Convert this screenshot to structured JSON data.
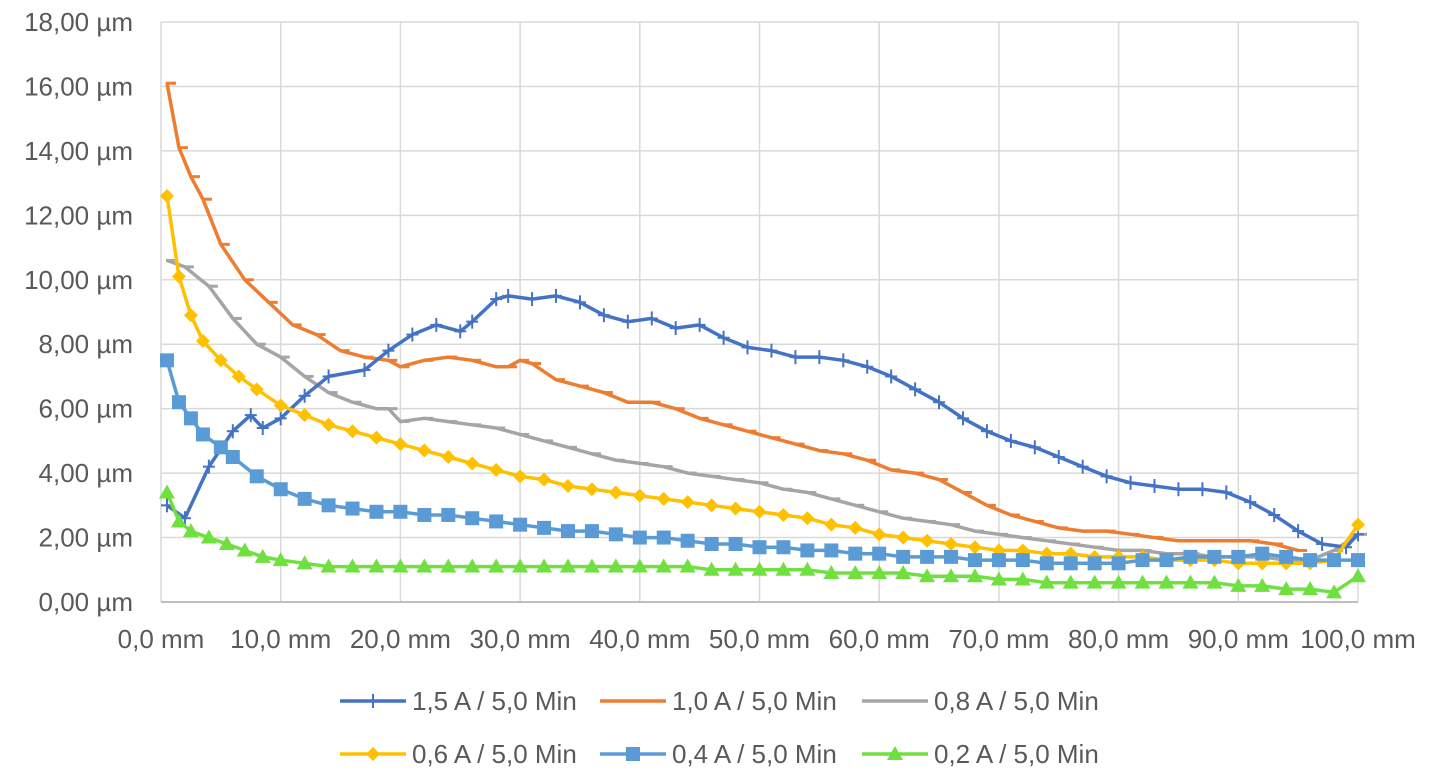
{
  "chart_data": {
    "type": "line",
    "title": "",
    "xlabel": "",
    "ylabel": "",
    "xlim": [
      0,
      100
    ],
    "ylim": [
      0,
      18
    ],
    "x_ticks": [
      0,
      10,
      20,
      30,
      40,
      50,
      60,
      70,
      80,
      90,
      100
    ],
    "x_tick_labels": [
      "0,0 mm",
      "10,0 mm",
      "20,0 mm",
      "30,0 mm",
      "40,0 mm",
      "50,0 mm",
      "60,0 mm",
      "70,0 mm",
      "80,0 mm",
      "90,0 mm",
      "100,0 mm"
    ],
    "y_ticks": [
      0,
      2,
      4,
      6,
      8,
      10,
      12,
      14,
      16,
      18
    ],
    "y_tick_labels": [
      "0,00 µm",
      "2,00 µm",
      "4,00 µm",
      "6,00 µm",
      "8,00 µm",
      "10,00 µm",
      "12,00 µm",
      "14,00 µm",
      "16,00 µm",
      "18,00 µm"
    ],
    "grid": true,
    "legend_position": "bottom",
    "series": [
      {
        "name": "1,5 A / 5,0 Min",
        "color": "#4472c4",
        "marker": "plus",
        "x": [
          0.5,
          2,
          4,
          6,
          7.5,
          8.5,
          10,
          12,
          14,
          17,
          19,
          21,
          23,
          25,
          26,
          28,
          29,
          31,
          33,
          35,
          37,
          39,
          41,
          43,
          45,
          47,
          49,
          51,
          53,
          55,
          57,
          59,
          61,
          63,
          65,
          67,
          69,
          71,
          73,
          75,
          77,
          79,
          81,
          83,
          85,
          87,
          89,
          91,
          93,
          95,
          97,
          99,
          100
        ],
        "y": [
          3.0,
          2.6,
          4.2,
          5.3,
          5.8,
          5.4,
          5.7,
          6.4,
          7.0,
          7.2,
          7.8,
          8.3,
          8.6,
          8.4,
          8.7,
          9.4,
          9.5,
          9.4,
          9.5,
          9.3,
          8.9,
          8.7,
          8.8,
          8.5,
          8.6,
          8.2,
          7.9,
          7.8,
          7.6,
          7.6,
          7.5,
          7.3,
          7.0,
          6.6,
          6.2,
          5.7,
          5.3,
          5.0,
          4.8,
          4.5,
          4.2,
          3.9,
          3.7,
          3.6,
          3.5,
          3.5,
          3.4,
          3.1,
          2.7,
          2.2,
          1.8,
          1.7,
          2.1
        ]
      },
      {
        "name": "1,0 A / 5,0 Min",
        "color": "#ed7d31",
        "marker": "dash",
        "x": [
          0.5,
          1.5,
          2.5,
          3.5,
          5,
          7,
          9,
          11,
          13,
          15,
          17,
          19,
          20,
          22,
          24,
          26,
          28,
          29,
          30,
          31,
          33,
          35,
          37,
          39,
          41,
          43,
          45,
          47,
          49,
          51,
          53,
          55,
          57,
          59,
          61,
          63,
          65,
          67,
          69,
          71,
          73,
          75,
          77,
          79,
          81,
          83,
          85,
          87,
          89,
          91,
          93,
          95
        ],
        "y": [
          16.1,
          14.1,
          13.2,
          12.5,
          11.1,
          10.0,
          9.3,
          8.6,
          8.3,
          7.8,
          7.6,
          7.5,
          7.3,
          7.5,
          7.6,
          7.5,
          7.3,
          7.3,
          7.5,
          7.4,
          6.9,
          6.7,
          6.5,
          6.2,
          6.2,
          6.0,
          5.7,
          5.5,
          5.3,
          5.1,
          4.9,
          4.7,
          4.6,
          4.4,
          4.1,
          4.0,
          3.8,
          3.4,
          3.0,
          2.7,
          2.5,
          2.3,
          2.2,
          2.2,
          2.1,
          2.0,
          1.9,
          1.9,
          1.9,
          1.9,
          1.8,
          1.6
        ]
      },
      {
        "name": "0,8 A / 5,0 Min",
        "color": "#a5a5a5",
        "marker": "dash",
        "x": [
          0.5,
          2,
          4,
          6,
          8,
          10,
          12,
          14,
          16,
          18,
          19,
          20,
          22,
          24,
          26,
          28,
          30,
          32,
          34,
          36,
          38,
          40,
          42,
          44,
          46,
          48,
          50,
          52,
          54,
          56,
          58,
          60,
          62,
          64,
          66,
          68,
          70,
          72,
          74,
          76,
          78,
          80,
          82,
          84,
          86,
          88,
          90,
          92,
          94,
          96,
          98,
          100
        ],
        "y": [
          10.6,
          10.4,
          9.8,
          8.8,
          8.0,
          7.6,
          7.0,
          6.5,
          6.2,
          6.0,
          6.0,
          5.6,
          5.7,
          5.6,
          5.5,
          5.4,
          5.2,
          5.0,
          4.8,
          4.6,
          4.4,
          4.3,
          4.2,
          4.0,
          3.9,
          3.8,
          3.7,
          3.5,
          3.4,
          3.2,
          3.0,
          2.8,
          2.6,
          2.5,
          2.4,
          2.2,
          2.1,
          2.0,
          1.9,
          1.8,
          1.7,
          1.6,
          1.6,
          1.5,
          1.5,
          1.4,
          1.4,
          1.4,
          1.3,
          1.3,
          1.6,
          2.1
        ]
      },
      {
        "name": "0,6 A / 5,0 Min",
        "color": "#ffc000",
        "marker": "diamond",
        "x": [
          0.5,
          1.5,
          2.5,
          3.5,
          5,
          6.5,
          8,
          10,
          12,
          14,
          16,
          18,
          20,
          22,
          24,
          26,
          28,
          30,
          32,
          34,
          36,
          38,
          40,
          42,
          44,
          46,
          48,
          50,
          52,
          54,
          56,
          58,
          60,
          62,
          64,
          66,
          68,
          70,
          72,
          74,
          76,
          78,
          80,
          82,
          84,
          86,
          88,
          90,
          92,
          94,
          96,
          98,
          100
        ],
        "y": [
          12.6,
          10.1,
          8.9,
          8.1,
          7.5,
          7.0,
          6.6,
          6.1,
          5.8,
          5.5,
          5.3,
          5.1,
          4.9,
          4.7,
          4.5,
          4.3,
          4.1,
          3.9,
          3.8,
          3.6,
          3.5,
          3.4,
          3.3,
          3.2,
          3.1,
          3.0,
          2.9,
          2.8,
          2.7,
          2.6,
          2.4,
          2.3,
          2.1,
          2.0,
          1.9,
          1.8,
          1.7,
          1.6,
          1.6,
          1.5,
          1.5,
          1.4,
          1.4,
          1.4,
          1.3,
          1.3,
          1.3,
          1.2,
          1.2,
          1.2,
          1.2,
          1.3,
          2.4
        ]
      },
      {
        "name": "0,4 A / 5,0 Min",
        "color": "#5b9bd5",
        "marker": "square",
        "x": [
          0.5,
          1.5,
          2.5,
          3.5,
          5,
          6,
          8,
          10,
          12,
          14,
          16,
          18,
          20,
          22,
          24,
          26,
          28,
          30,
          32,
          34,
          36,
          38,
          40,
          42,
          44,
          46,
          48,
          50,
          52,
          54,
          56,
          58,
          60,
          62,
          64,
          66,
          68,
          70,
          72,
          74,
          76,
          78,
          80,
          82,
          84,
          86,
          88,
          90,
          92,
          94,
          96,
          98,
          100
        ],
        "y": [
          7.5,
          6.2,
          5.7,
          5.2,
          4.8,
          4.5,
          3.9,
          3.5,
          3.2,
          3.0,
          2.9,
          2.8,
          2.8,
          2.7,
          2.7,
          2.6,
          2.5,
          2.4,
          2.3,
          2.2,
          2.2,
          2.1,
          2.0,
          2.0,
          1.9,
          1.8,
          1.8,
          1.7,
          1.7,
          1.6,
          1.6,
          1.5,
          1.5,
          1.4,
          1.4,
          1.4,
          1.3,
          1.3,
          1.3,
          1.2,
          1.2,
          1.2,
          1.2,
          1.3,
          1.3,
          1.4,
          1.4,
          1.4,
          1.5,
          1.4,
          1.3,
          1.3,
          1.3
        ]
      },
      {
        "name": "0,2 A / 5,0 Min",
        "color": "#70e040",
        "marker": "triangle",
        "x": [
          0.5,
          1.5,
          2.5,
          4,
          5.5,
          7,
          8.5,
          10,
          12,
          14,
          16,
          18,
          20,
          22,
          24,
          26,
          28,
          30,
          32,
          34,
          36,
          38,
          40,
          42,
          44,
          46,
          48,
          50,
          52,
          54,
          56,
          58,
          60,
          62,
          64,
          66,
          68,
          70,
          72,
          74,
          76,
          78,
          80,
          82,
          84,
          86,
          88,
          90,
          92,
          94,
          96,
          98,
          100
        ],
        "y": [
          3.4,
          2.5,
          2.2,
          2.0,
          1.8,
          1.6,
          1.4,
          1.3,
          1.2,
          1.1,
          1.1,
          1.1,
          1.1,
          1.1,
          1.1,
          1.1,
          1.1,
          1.1,
          1.1,
          1.1,
          1.1,
          1.1,
          1.1,
          1.1,
          1.1,
          1.0,
          1.0,
          1.0,
          1.0,
          1.0,
          0.9,
          0.9,
          0.9,
          0.9,
          0.8,
          0.8,
          0.8,
          0.7,
          0.7,
          0.6,
          0.6,
          0.6,
          0.6,
          0.6,
          0.6,
          0.6,
          0.6,
          0.5,
          0.5,
          0.4,
          0.4,
          0.3,
          0.8
        ]
      }
    ]
  }
}
